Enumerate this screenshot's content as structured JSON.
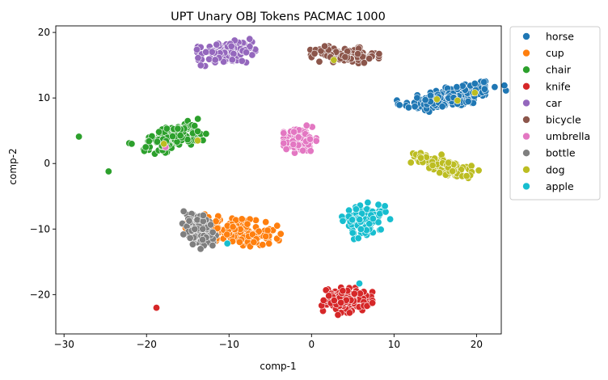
{
  "chart_data": {
    "type": "scatter",
    "title": "UPT Unary OBJ Tokens PACMAC 1000",
    "xlabel": "comp-1",
    "ylabel": "comp-2",
    "xlim": [
      -31,
      23
    ],
    "ylim": [
      -26,
      21
    ],
    "xticks": [
      -30,
      -20,
      -10,
      0,
      10,
      20
    ],
    "yticks": [
      -20,
      -10,
      0,
      10,
      20
    ],
    "grid": false,
    "legend_position": "outside-right",
    "series": [
      {
        "name": "horse",
        "color": "#1f77b4",
        "clusters": [
          {
            "cx": 17.0,
            "cy": 10.2,
            "sx": 3.0,
            "sy": 0.9,
            "n": 170,
            "rot": 0.24
          }
        ],
        "points": [
          [
            13.8,
            9.7
          ],
          [
            19.9,
            11.2
          ]
        ]
      },
      {
        "name": "cup",
        "color": "#ff7f0e",
        "clusters": [
          {
            "cx": -9.5,
            "cy": -10.3,
            "sx": 2.6,
            "sy": 1.0,
            "n": 180,
            "rot": -0.22
          }
        ],
        "points": [
          [
            -7.0,
            -12.0
          ],
          [
            -12.5,
            -8.2
          ]
        ]
      },
      {
        "name": "chair",
        "color": "#2ca02c",
        "clusters": [
          {
            "cx": -16.8,
            "cy": 3.9,
            "sx": 1.8,
            "sy": 0.8,
            "n": 140,
            "rot": 0.38
          }
        ],
        "points": [
          [
            -28.2,
            4.1
          ],
          [
            -24.6,
            -1.2
          ],
          [
            -22.1,
            3.1
          ],
          [
            -21.8,
            3.0
          ],
          [
            -20.1,
            2.5
          ],
          [
            -14.0,
            3.5
          ]
        ]
      },
      {
        "name": "knife",
        "color": "#d62728",
        "clusters": [
          {
            "cx": 4.3,
            "cy": -20.8,
            "sx": 1.4,
            "sy": 0.9,
            "n": 140,
            "rot": 0.0
          }
        ],
        "points": [
          [
            -18.8,
            -22.0
          ],
          [
            3.2,
            -23.1
          ]
        ]
      },
      {
        "name": "car",
        "color": "#9467bd",
        "clusters": [
          {
            "cx": -10.3,
            "cy": 16.9,
            "sx": 1.6,
            "sy": 0.8,
            "n": 140,
            "rot": 0.12
          }
        ],
        "points": [
          [
            -12.8,
            17.0
          ],
          [
            -7.5,
            19.0
          ]
        ]
      },
      {
        "name": "bicycle",
        "color": "#8c564b",
        "clusters": [
          {
            "cx": 4.0,
            "cy": 16.6,
            "sx": 1.9,
            "sy": 0.55,
            "n": 120,
            "rot": -0.05
          }
        ],
        "points": [
          [
            1.6,
            17.9
          ],
          [
            7.0,
            16.0
          ]
        ]
      },
      {
        "name": "umbrella",
        "color": "#e377c2",
        "clusters": [
          {
            "cx": -1.4,
            "cy": 3.6,
            "sx": 0.9,
            "sy": 0.9,
            "n": 120,
            "rot": 0.0
          }
        ],
        "points": [
          [
            -17.7,
            2.5
          ],
          [
            -0.6,
            5.8
          ]
        ]
      },
      {
        "name": "bottle",
        "color": "#7f7f7f",
        "clusters": [
          {
            "cx": -13.4,
            "cy": -10.2,
            "sx": 1.0,
            "sy": 1.3,
            "n": 110,
            "rot": 0.2
          }
        ],
        "points": [
          [
            -15.5,
            -7.3
          ],
          [
            -12.0,
            -12.5
          ]
        ]
      },
      {
        "name": "dog",
        "color": "#bcbd22",
        "clusters": [
          {
            "cx": 16.3,
            "cy": -0.3,
            "sx": 2.0,
            "sy": 0.6,
            "n": 110,
            "rot": -0.42
          }
        ],
        "points": [
          [
            2.7,
            15.8
          ],
          [
            15.2,
            9.8
          ],
          [
            17.7,
            9.6
          ],
          [
            19.8,
            10.8
          ],
          [
            -17.9,
            3.0
          ],
          [
            -13.8,
            3.5
          ],
          [
            18.8,
            -1.9
          ]
        ]
      },
      {
        "name": "apple",
        "color": "#17becf",
        "clusters": [
          {
            "cx": 6.6,
            "cy": -8.5,
            "sx": 1.2,
            "sy": 1.0,
            "n": 130,
            "rot": 0.45
          }
        ],
        "points": [
          [
            5.8,
            -18.3
          ],
          [
            -10.2,
            -12.2
          ],
          [
            8.9,
            -6.5
          ]
        ]
      }
    ]
  }
}
